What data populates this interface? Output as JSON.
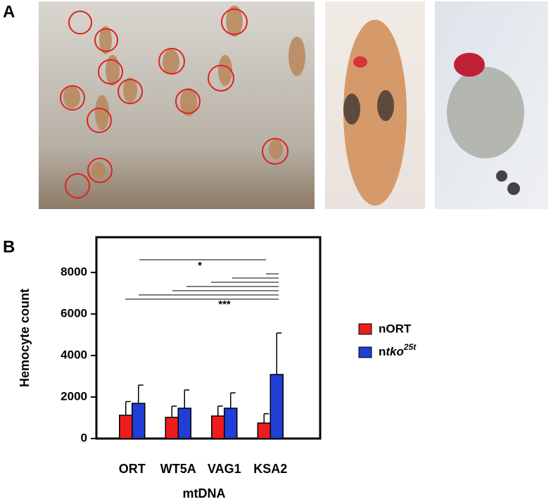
{
  "panel_labels": [
    "A",
    "B"
  ],
  "chart_data": {
    "type": "bar",
    "title": null,
    "x_label": "mtDNA",
    "y_label": "Hemocyte count",
    "categories": [
      "ORT",
      "WT5A",
      "VAG1",
      "KSA2"
    ],
    "series": [
      {
        "name": "nORT",
        "color": "#ee1c1c",
        "values": [
          1120,
          1020,
          1085,
          745
        ],
        "errors": [
          660,
          540,
          480,
          450
        ]
      },
      {
        "name": "ntko25t",
        "color": "#1f3fd6",
        "values": [
          1695,
          1460,
          1460,
          3085
        ],
        "errors": [
          880,
          880,
          740,
          2000
        ]
      }
    ],
    "ylim": [
      0,
      9700
    ],
    "yticks": [
      0,
      2000,
      4000,
      6000,
      8000
    ],
    "annotations": [
      "*",
      "***"
    ]
  }
}
